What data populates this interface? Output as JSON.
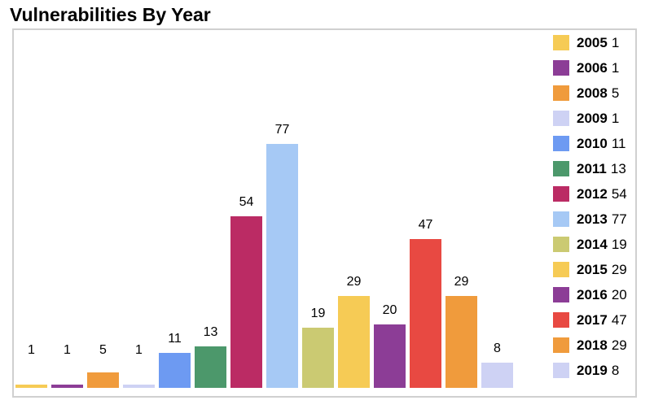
{
  "title": "Vulnerabilities By Year",
  "chart_data": {
    "type": "bar",
    "title": "Vulnerabilities By Year",
    "categories": [
      "2005",
      "2006",
      "2008",
      "2009",
      "2010",
      "2011",
      "2012",
      "2013",
      "2014",
      "2015",
      "2016",
      "2017",
      "2018",
      "2019"
    ],
    "values": [
      1,
      1,
      5,
      1,
      11,
      13,
      54,
      77,
      19,
      29,
      20,
      47,
      29,
      8
    ],
    "colors": [
      "#f6cb55",
      "#8c3d96",
      "#f09b3c",
      "#ced2f4",
      "#6d9af2",
      "#4c986b",
      "#bb2b64",
      "#a6c9f5",
      "#cbca72",
      "#f6cb55",
      "#8c3d96",
      "#e84942",
      "#f09b3c",
      "#ced2f4"
    ],
    "xlabel": "",
    "ylabel": "",
    "ylim": [
      0,
      110
    ],
    "grid": false,
    "legend_position": "right",
    "bar_value_labels": true,
    "border_color": "#d0d0d0",
    "text_color": "#000000"
  }
}
